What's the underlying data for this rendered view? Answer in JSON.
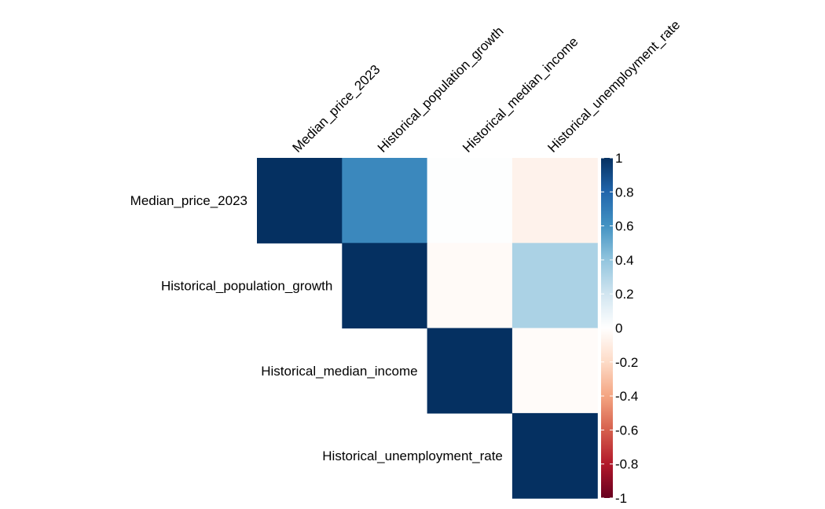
{
  "chart_data": {
    "type": "heatmap",
    "subtype": "correlation-upper-triangle",
    "variables": [
      "Median_price_2023",
      "Historical_population_growth",
      "Historical_median_income",
      "Historical_unemployment_rate"
    ],
    "correlations": [
      [
        1.0,
        0.65,
        0.01,
        -0.07
      ],
      [
        null,
        1.0,
        -0.03,
        0.32
      ],
      [
        null,
        null,
        1.0,
        -0.02
      ],
      [
        null,
        null,
        null,
        1.0
      ]
    ],
    "colorbar": {
      "range": [
        -1,
        1
      ],
      "ticks": [
        "1",
        "0.8",
        "0.6",
        "0.4",
        "0.2",
        "0",
        "-0.2",
        "-0.4",
        "-0.6",
        "-0.8",
        "-1"
      ],
      "colors": [
        "#67001F",
        "#B2182B",
        "#D6604D",
        "#F4A582",
        "#FDDBC7",
        "#FFFFFF",
        "#D1E5F0",
        "#92C5DE",
        "#4393C3",
        "#2166AC",
        "#053061"
      ]
    }
  }
}
